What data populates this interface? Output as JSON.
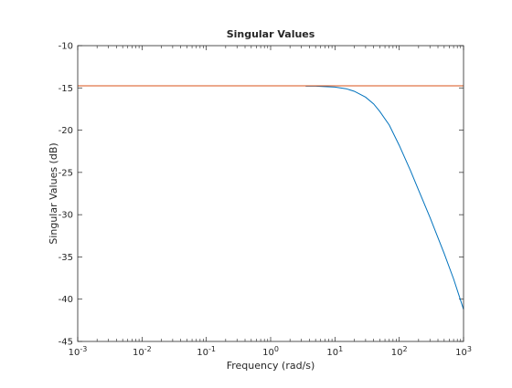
{
  "chart_data": {
    "type": "line",
    "title": "Singular Values",
    "xlabel": "Frequency (rad/s)",
    "ylabel": "Singular Values (dB)",
    "xscale": "log",
    "xlim": [
      0.001,
      1000
    ],
    "ylim": [
      -45,
      -10
    ],
    "x_ticks": [
      0.001,
      0.01,
      0.1,
      1,
      10,
      100,
      1000
    ],
    "x_tick_labels": [
      {
        "base": "10",
        "exp": "-3"
      },
      {
        "base": "10",
        "exp": "-2"
      },
      {
        "base": "10",
        "exp": "-1"
      },
      {
        "base": "10",
        "exp": "0"
      },
      {
        "base": "10",
        "exp": "1"
      },
      {
        "base": "10",
        "exp": "2"
      },
      {
        "base": "10",
        "exp": "3"
      }
    ],
    "y_ticks": [
      -45,
      -40,
      -35,
      -30,
      -25,
      -20,
      -15,
      -10
    ],
    "y_tick_labels": [
      "-45",
      "-40",
      "-35",
      "-30",
      "-25",
      "-20",
      "-15",
      "-10"
    ],
    "grid": false,
    "legend": "none",
    "series": [
      {
        "color": "#0072bd",
        "x": [
          3.5,
          5,
          7,
          10,
          15,
          20,
          30,
          40,
          50,
          70,
          100,
          150,
          200,
          300,
          500,
          700,
          1000
        ],
        "y": [
          -14.8,
          -14.8,
          -14.85,
          -14.9,
          -15.1,
          -15.4,
          -16.1,
          -16.9,
          -17.8,
          -19.4,
          -21.8,
          -24.8,
          -27.1,
          -30.3,
          -34.6,
          -37.6,
          -41.2
        ]
      },
      {
        "color": "#d95319",
        "x": [
          0.001,
          1000
        ],
        "y": [
          -14.75,
          -14.75
        ]
      }
    ]
  }
}
